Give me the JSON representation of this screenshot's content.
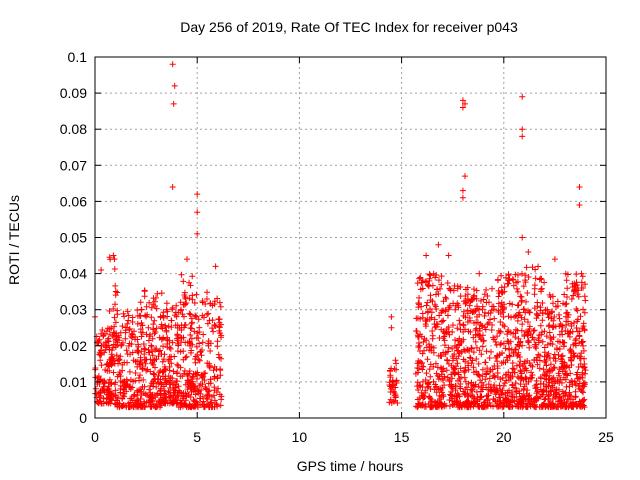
{
  "chart_data": {
    "type": "scatter",
    "title": "Day 256 of 2019, Rate Of TEC Index for receiver p043",
    "xlabel": "GPS time / hours",
    "ylabel": "ROTI / TECUs",
    "xlim": [
      0,
      25
    ],
    "ylim": [
      0,
      0.1
    ],
    "grid": true,
    "marker": "+",
    "marker_color": "#ff0000",
    "xticks": [
      {
        "value": 0,
        "label": "0"
      },
      {
        "value": 5,
        "label": "5"
      },
      {
        "value": 10,
        "label": "10"
      },
      {
        "value": 15,
        "label": "15"
      },
      {
        "value": 20,
        "label": "20"
      },
      {
        "value": 25,
        "label": "25"
      }
    ],
    "yticks": [
      {
        "value": 0,
        "label": "0"
      },
      {
        "value": 0.01,
        "label": "0.01"
      },
      {
        "value": 0.02,
        "label": "0.02"
      },
      {
        "value": 0.03,
        "label": "0.03"
      },
      {
        "value": 0.04,
        "label": "0.04"
      },
      {
        "value": 0.05,
        "label": "0.05"
      },
      {
        "value": 0.06,
        "label": "0.06"
      },
      {
        "value": 0.07,
        "label": "0.07"
      },
      {
        "value": 0.08,
        "label": "0.08"
      },
      {
        "value": 0.09,
        "label": "0.09"
      },
      {
        "value": 0.1,
        "label": "0.1"
      }
    ],
    "observation_windows_hours": [
      [
        0.0,
        6.2
      ],
      [
        14.4,
        14.8
      ],
      [
        15.7,
        24.0
      ]
    ],
    "notable_points": [
      {
        "x": 0.0,
        "y": 0.028
      },
      {
        "x": 0.3,
        "y": 0.041
      },
      {
        "x": 0.9,
        "y": 0.045
      },
      {
        "x": 3.8,
        "y": 0.098
      },
      {
        "x": 3.9,
        "y": 0.092
      },
      {
        "x": 3.85,
        "y": 0.087
      },
      {
        "x": 3.8,
        "y": 0.064
      },
      {
        "x": 4.5,
        "y": 0.044
      },
      {
        "x": 5.0,
        "y": 0.062
      },
      {
        "x": 5.0,
        "y": 0.057
      },
      {
        "x": 5.0,
        "y": 0.051
      },
      {
        "x": 5.9,
        "y": 0.042
      },
      {
        "x": 14.5,
        "y": 0.028
      },
      {
        "x": 14.5,
        "y": 0.025
      },
      {
        "x": 14.7,
        "y": 0.016
      },
      {
        "x": 16.2,
        "y": 0.045
      },
      {
        "x": 16.8,
        "y": 0.048
      },
      {
        "x": 17.3,
        "y": 0.045
      },
      {
        "x": 18.0,
        "y": 0.088
      },
      {
        "x": 18.1,
        "y": 0.087
      },
      {
        "x": 18.0,
        "y": 0.086
      },
      {
        "x": 18.1,
        "y": 0.067
      },
      {
        "x": 18.0,
        "y": 0.063
      },
      {
        "x": 18.0,
        "y": 0.061
      },
      {
        "x": 18.8,
        "y": 0.04
      },
      {
        "x": 20.9,
        "y": 0.089
      },
      {
        "x": 20.9,
        "y": 0.08
      },
      {
        "x": 20.9,
        "y": 0.078
      },
      {
        "x": 20.9,
        "y": 0.05
      },
      {
        "x": 21.2,
        "y": 0.046
      },
      {
        "x": 22.5,
        "y": 0.044
      },
      {
        "x": 23.7,
        "y": 0.064
      },
      {
        "x": 23.7,
        "y": 0.059
      },
      {
        "x": 23.8,
        "y": 0.04
      }
    ],
    "clusters": [
      {
        "x": [
          0.0,
          1.0
        ],
        "y": [
          0.004,
          0.025
        ],
        "n": 140
      },
      {
        "x": [
          0.7,
          1.1
        ],
        "y": [
          0.015,
          0.045
        ],
        "n": 35
      },
      {
        "x": [
          1.0,
          2.2
        ],
        "y": [
          0.003,
          0.03
        ],
        "n": 160
      },
      {
        "x": [
          2.2,
          3.3
        ],
        "y": [
          0.003,
          0.037
        ],
        "n": 180
      },
      {
        "x": [
          3.3,
          4.1
        ],
        "y": [
          0.004,
          0.032
        ],
        "n": 150
      },
      {
        "x": [
          4.1,
          4.9
        ],
        "y": [
          0.003,
          0.04
        ],
        "n": 140
      },
      {
        "x": [
          4.9,
          6.2
        ],
        "y": [
          0.003,
          0.035
        ],
        "n": 160
      },
      {
        "x": [
          14.4,
          14.8
        ],
        "y": [
          0.004,
          0.016
        ],
        "n": 35
      },
      {
        "x": [
          15.7,
          17.0
        ],
        "y": [
          0.003,
          0.04
        ],
        "n": 220
      },
      {
        "x": [
          17.0,
          18.3
        ],
        "y": [
          0.003,
          0.038
        ],
        "n": 220
      },
      {
        "x": [
          18.3,
          19.6
        ],
        "y": [
          0.003,
          0.036
        ],
        "n": 200
      },
      {
        "x": [
          19.6,
          20.8
        ],
        "y": [
          0.003,
          0.04
        ],
        "n": 220
      },
      {
        "x": [
          20.8,
          22.0
        ],
        "y": [
          0.003,
          0.042
        ],
        "n": 220
      },
      {
        "x": [
          22.0,
          23.0
        ],
        "y": [
          0.003,
          0.035
        ],
        "n": 190
      },
      {
        "x": [
          23.0,
          24.0
        ],
        "y": [
          0.003,
          0.04
        ],
        "n": 200
      }
    ]
  }
}
